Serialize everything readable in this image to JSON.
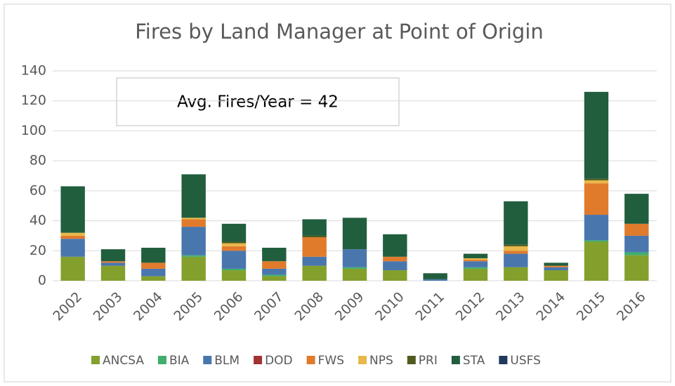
{
  "chart_data": {
    "type": "bar",
    "stacked": true,
    "title": "Fires by Land Manager at Point of Origin",
    "annotation": "Avg. Fires/Year = 42",
    "categories": [
      "2002",
      "2003",
      "2004",
      "2005",
      "2006",
      "2007",
      "2008",
      "2009",
      "2010",
      "2011",
      "2012",
      "2013",
      "2014",
      "2015",
      "2016"
    ],
    "series": [
      {
        "name": "ANCSA",
        "color": "#83a02d",
        "values": [
          16,
          10,
          3,
          16,
          7,
          3,
          10,
          8,
          7,
          0,
          8,
          9,
          7,
          26,
          17
        ]
      },
      {
        "name": "BIA",
        "color": "#3fae6e",
        "values": [
          0,
          0,
          0,
          1,
          1,
          1,
          0,
          1,
          0,
          0,
          1,
          0,
          0,
          1,
          2
        ]
      },
      {
        "name": "BLM",
        "color": "#4a76ae",
        "values": [
          12,
          2,
          5,
          19,
          12,
          4,
          6,
          12,
          6,
          1,
          4,
          9,
          2,
          17,
          11
        ]
      },
      {
        "name": "DOD",
        "color": "#a33232",
        "values": [
          0,
          0,
          0,
          0,
          0,
          0,
          0,
          0,
          0,
          0,
          0,
          0,
          0,
          0,
          0
        ]
      },
      {
        "name": "FWS",
        "color": "#e07b2c",
        "values": [
          2,
          1,
          4,
          5,
          3,
          5,
          13,
          0,
          3,
          0,
          1,
          2,
          1,
          21,
          8
        ]
      },
      {
        "name": "NPS",
        "color": "#e8b84a",
        "values": [
          2,
          0,
          0,
          1,
          2,
          0,
          0,
          0,
          0,
          0,
          1,
          3,
          0,
          2,
          0
        ]
      },
      {
        "name": "PRI",
        "color": "#4f5a1f",
        "values": [
          0,
          0,
          0,
          0,
          1,
          0,
          1,
          0,
          0,
          0,
          0,
          1,
          0,
          1,
          0
        ]
      },
      {
        "name": "STA",
        "color": "#215e3e",
        "values": [
          31,
          8,
          10,
          29,
          12,
          9,
          11,
          21,
          15,
          4,
          3,
          29,
          2,
          58,
          20
        ]
      },
      {
        "name": "USFS",
        "color": "#1f3a5c",
        "values": [
          0,
          0,
          0,
          0,
          0,
          0,
          0,
          0,
          0,
          0,
          0,
          0,
          0,
          0,
          0
        ]
      }
    ],
    "ylim": [
      0,
      140
    ],
    "yticks": [
      0,
      20,
      40,
      60,
      80,
      100,
      120,
      140
    ],
    "grid": true
  }
}
